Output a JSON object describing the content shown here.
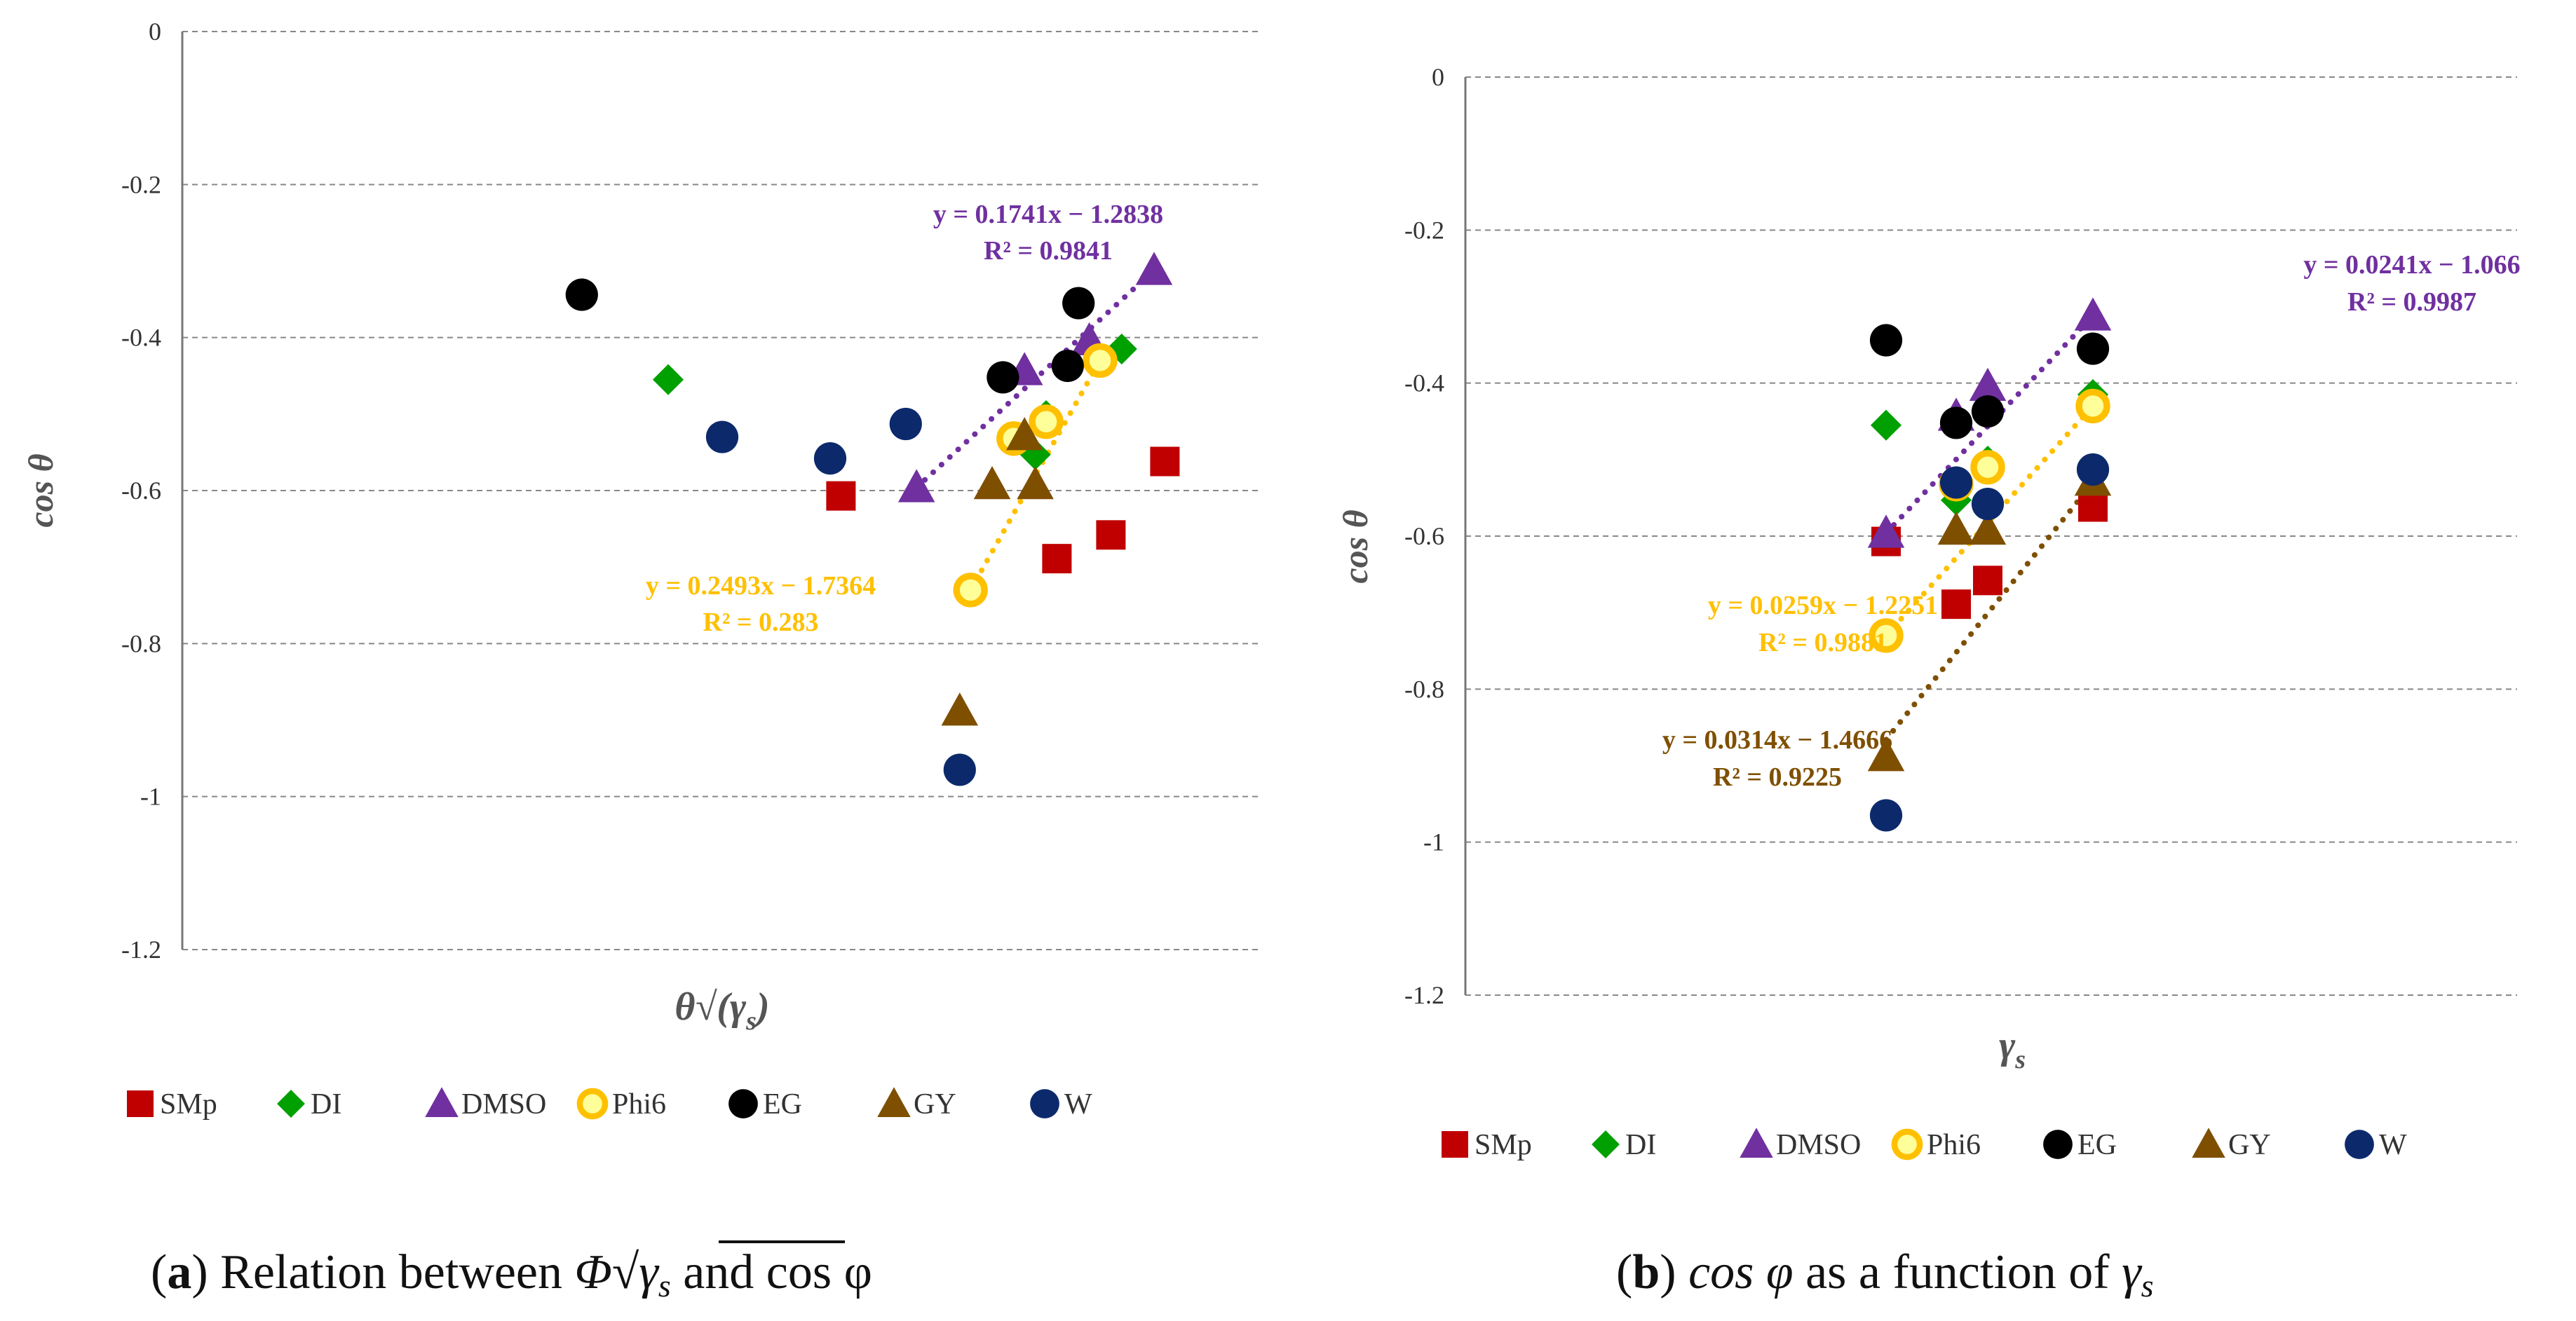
{
  "series_styles": {
    "SMp": {
      "marker": "square",
      "fill": "#C00000",
      "stroke": "#C00000"
    },
    "DI": {
      "marker": "diamond",
      "fill": "#00A000",
      "stroke": "#00A000"
    },
    "DMSO": {
      "marker": "triangle",
      "fill": "#7030A0",
      "stroke": "#7030A0"
    },
    "Phi6": {
      "marker": "ring",
      "fill": "#FFFF99",
      "stroke": "#FFC000"
    },
    "EG": {
      "marker": "circle",
      "fill": "#000000",
      "stroke": "#000000"
    },
    "GY": {
      "marker": "triangle",
      "fill": "#7F4F00",
      "stroke": "#7F4F00"
    },
    "W": {
      "marker": "circle",
      "fill": "#0C2A6B",
      "stroke": "#0C2A6B"
    }
  },
  "captions": {
    "a": {
      "label": "a",
      "text_before": " Relation between ",
      "symbol": "Φ",
      "radicand": "γ",
      "sub": "s",
      "text_after": "  and cos φ"
    },
    "b": {
      "label": "b",
      "text_italic": "cos φ",
      "text_mid": " as a function of ",
      "symbol": "γ",
      "sub": "s"
    }
  },
  "chart_data": [
    {
      "id": "a",
      "type": "scatter",
      "title": "",
      "ylabel": "cos θ",
      "xlabel": "θ√(γs)",
      "ylim": [
        -1.2,
        0
      ],
      "yticks": [
        "0",
        "-0.2",
        "-0.4",
        "-0.6",
        "-0.8",
        "-1",
        "-1.2"
      ],
      "xlim": [
        0,
        10
      ],
      "grid": true,
      "legend": [
        "SMp",
        "DI",
        "DMSO",
        "Phi6",
        "EG",
        "GY",
        "W"
      ],
      "legend_position": "bottom",
      "series": [
        {
          "name": "SMp",
          "x": [
            6.1,
            8.1,
            8.6,
            9.1
          ],
          "y": [
            -0.607,
            -0.689,
            -0.658,
            -0.562
          ]
        },
        {
          "name": "DI",
          "x": [
            4.5,
            8.0,
            7.9,
            8.7
          ],
          "y": [
            -0.455,
            -0.502,
            -0.553,
            -0.415
          ]
        },
        {
          "name": "DMSO",
          "x": [
            6.8,
            7.8,
            8.4,
            9.0
          ],
          "y": [
            -0.596,
            -0.443,
            -0.404,
            -0.312
          ]
        },
        {
          "name": "Phi6",
          "x": [
            7.3,
            7.7,
            8.0,
            8.5
          ],
          "y": [
            -0.73,
            -0.532,
            -0.51,
            -0.43
          ]
        },
        {
          "name": "EG",
          "x": [
            3.7,
            7.6,
            8.2,
            8.3
          ],
          "y": [
            -0.344,
            -0.452,
            -0.437,
            -0.355
          ]
        },
        {
          "name": "GY",
          "x": [
            7.2,
            7.5,
            7.9,
            7.8
          ],
          "y": [
            -0.888,
            -0.592,
            -0.592,
            -0.528
          ]
        },
        {
          "name": "W",
          "x": [
            7.2,
            5.0,
            6.0,
            6.7
          ],
          "y": [
            -0.965,
            -0.53,
            -0.558,
            -0.513
          ]
        }
      ],
      "trendlines": [
        {
          "name": "DMSO",
          "x": [
            6.8,
            9.0
          ],
          "y": [
            -0.596,
            -0.312
          ],
          "equation": "y = 0.1741x − 1.2838",
          "r2": "R² = 0.9841",
          "color": "#7030A0"
        },
        {
          "name": "Phi6",
          "x": [
            7.3,
            8.5
          ],
          "y": [
            -0.73,
            -0.43
          ],
          "equation": "y = 0.2493x − 1.7364",
          "r2": "R² = 0.283",
          "color": "#FFC000"
        }
      ]
    },
    {
      "id": "b",
      "type": "scatter",
      "title": "",
      "ylabel": "cos θ",
      "xlabel": "γs",
      "ylim": [
        -1.2,
        0
      ],
      "yticks": [
        "0",
        "-0.2",
        "-0.4",
        "-0.6",
        "-0.8",
        "-1",
        "-1.2"
      ],
      "xlim": [
        20,
        80
      ],
      "grid": true,
      "legend": [
        "SMp",
        "DI",
        "DMSO",
        "Phi6",
        "EG",
        "GY",
        "W"
      ],
      "legend_position": "bottom",
      "series": [
        {
          "name": "SMp",
          "x": [
            44.0,
            48.0,
            49.8,
            55.8
          ],
          "y": [
            -0.607,
            -0.689,
            -0.658,
            -0.562
          ]
        },
        {
          "name": "DI",
          "x": [
            44.0,
            48.0,
            49.8,
            55.8
          ],
          "y": [
            -0.455,
            -0.553,
            -0.502,
            -0.415
          ]
        },
        {
          "name": "DMSO",
          "x": [
            44.0,
            48.0,
            49.8,
            55.8
          ],
          "y": [
            -0.596,
            -0.443,
            -0.404,
            -0.312
          ]
        },
        {
          "name": "Phi6",
          "x": [
            44.0,
            48.0,
            49.8,
            55.8
          ],
          "y": [
            -0.73,
            -0.532,
            -0.51,
            -0.43
          ]
        },
        {
          "name": "EG",
          "x": [
            44.0,
            48.0,
            49.8,
            55.8
          ],
          "y": [
            -0.344,
            -0.452,
            -0.437,
            -0.355
          ]
        },
        {
          "name": "GY",
          "x": [
            44.0,
            48.0,
            49.8,
            55.8
          ],
          "y": [
            -0.888,
            -0.592,
            -0.592,
            -0.528
          ]
        },
        {
          "name": "W",
          "x": [
            44.0,
            48.0,
            49.8,
            55.8
          ],
          "y": [
            -0.965,
            -0.53,
            -0.558,
            -0.513
          ]
        }
      ],
      "trendlines": [
        {
          "name": "DMSO",
          "x": [
            44.0,
            55.8
          ],
          "y": [
            -0.596,
            -0.312
          ],
          "equation": "y = 0.0241x − 1.066",
          "r2": "R² = 0.9987",
          "color": "#7030A0"
        },
        {
          "name": "Phi6",
          "x": [
            44.0,
            55.8
          ],
          "y": [
            -0.73,
            -0.43
          ],
          "equation": "y = 0.0259x − 1.2251",
          "r2": "R² = 0.9881",
          "color": "#FFC000"
        },
        {
          "name": "GY",
          "x": [
            44.0,
            55.8
          ],
          "y": [
            -0.866,
            -0.53
          ],
          "equation": "y = 0.0314x − 1.4666",
          "r2": "R² = 0.9225",
          "color": "#7F4F00"
        }
      ]
    }
  ]
}
